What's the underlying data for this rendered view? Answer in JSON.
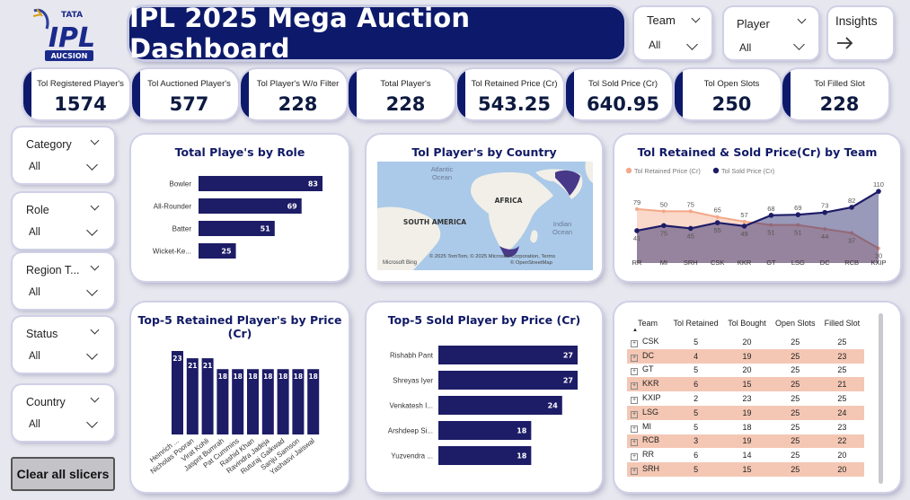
{
  "header": {
    "title": "IPL 2025 Mega Auction Dashboard",
    "logo_top": "TATA",
    "logo_main": "IPL",
    "logo_bottom": "AUCSION",
    "insights_label": "Insights",
    "insights_icon": "arrow-right-icon"
  },
  "top_slicers": [
    {
      "label": "Team",
      "value": "All"
    },
    {
      "label": "Player",
      "value": "All"
    }
  ],
  "kpis": [
    {
      "label": "Tol Registered Player's",
      "value": "1574"
    },
    {
      "label": "Tol Auctioned Player's",
      "value": "577"
    },
    {
      "label": "Tol Player's W/o Filter",
      "value": "228"
    },
    {
      "label": "Total Player's",
      "value": "228"
    },
    {
      "label": "Tol Retained Price (Cr)",
      "value": "543.25"
    },
    {
      "label": "Tol Sold Price (Cr)",
      "value": "640.95"
    },
    {
      "label": "Tol Open Slots",
      "value": "250"
    },
    {
      "label": "Tol Filled Slot",
      "value": "228"
    }
  ],
  "left_slicers": [
    {
      "label": "Category",
      "value": "All"
    },
    {
      "label": "Role",
      "value": "All"
    },
    {
      "label": "Region T...",
      "value": "All"
    },
    {
      "label": "Status",
      "value": "All"
    },
    {
      "label": "Country",
      "value": "All"
    }
  ],
  "clear_button": "Clear all slicers",
  "map": {
    "title": "Tol Player's by Country",
    "labels": {
      "ocean_atlantic": "Atlantic\nOcean",
      "africa": "AFRICA",
      "south_america": "SOUTH AMERICA",
      "ocean_indian": "Indian\nOcean"
    },
    "attribution": "© 2025 TomTom, © 2025 Microsoft Corporation, Terms",
    "osm": "© OpenStreetMap",
    "brand": "Microsoft Bing",
    "colors": {
      "water": "#abc9e8",
      "land": "#f1efe8",
      "highlight": "#473889"
    }
  },
  "chart_data": [
    {
      "type": "bar",
      "orientation": "horizontal",
      "title": "Total Playe's by Role",
      "categories": [
        "Bowler",
        "All-Rounder",
        "Batter",
        "Wicket-Ke..."
      ],
      "values": [
        83,
        69,
        51,
        25
      ],
      "color": "#1d1c67"
    },
    {
      "type": "line",
      "title": "Tol Retained & Sold Price(Cr) by Team",
      "categories": [
        "RR",
        "MI",
        "SRH",
        "CSK",
        "KKR",
        "GT",
        "LSG",
        "DC",
        "RCB",
        "KXIP"
      ],
      "series": [
        {
          "name": "Tol Retained Price (Cr)",
          "color": "#f3a889",
          "values": [
            79,
            75,
            75,
            65,
            57,
            51,
            51,
            44,
            37,
            10
          ]
        },
        {
          "name": "Tol Sold Price (Cr)",
          "color": "#1d1c67",
          "values": [
            41,
            50,
            45,
            55,
            49,
            68,
            69,
            73,
            82,
            110
          ]
        }
      ],
      "data_labels": [
        {
          "category": "RR",
          "texts": [
            "79",
            "41"
          ]
        },
        {
          "category": "MI",
          "texts": [
            "50",
            "75"
          ]
        },
        {
          "category": "SRH",
          "texts": [
            "75",
            "45"
          ]
        },
        {
          "category": "CSK",
          "texts": [
            "65",
            "55"
          ]
        },
        {
          "category": "KKR",
          "texts": [
            "57",
            "49"
          ]
        },
        {
          "category": "GT",
          "texts": [
            "68",
            "51"
          ]
        },
        {
          "category": "LSG",
          "texts": [
            "69",
            "51"
          ]
        },
        {
          "category": "DC",
          "texts": [
            "73",
            "44"
          ]
        },
        {
          "category": "RCB",
          "texts": [
            "82",
            "37"
          ]
        },
        {
          "category": "KXIP",
          "texts": [
            "110",
            "10"
          ]
        }
      ],
      "legend_position": "top-left"
    },
    {
      "type": "bar",
      "orientation": "vertical",
      "title": "Top-5 Retained Player's by Price (Cr)",
      "categories": [
        "Heinrich ...",
        "Nicholas Pooran",
        "Virat Kohli",
        "Jasprit Bumrah",
        "Pat Cummins",
        "Rashid Khan",
        "Ravindra Jadeja",
        "Ruturaj Gaikwad",
        "Sanju Samson",
        "Yashasvi Jaiswal"
      ],
      "values": [
        23,
        21,
        21,
        18,
        18,
        18,
        18,
        18,
        18,
        18
      ],
      "color": "#1d1c67"
    },
    {
      "type": "bar",
      "orientation": "horizontal",
      "title": "Top-5 Sold Player by Price (Cr)",
      "categories": [
        "Rishabh Pant",
        "Shreyas Iyer",
        "Venkatesh I...",
        "Arshdeep Si...",
        "Yuzvendra ..."
      ],
      "values": [
        27,
        27,
        24,
        18,
        18
      ],
      "color": "#1d1c67"
    },
    {
      "type": "table",
      "columns": [
        "Team",
        "Tol Retained",
        "Tol Bought",
        "Open Slots",
        "Filled Slot"
      ],
      "rows": [
        [
          "CSK",
          "5",
          "20",
          "25",
          "25"
        ],
        [
          "DC",
          "4",
          "19",
          "25",
          "23"
        ],
        [
          "GT",
          "5",
          "20",
          "25",
          "25"
        ],
        [
          "KKR",
          "6",
          "15",
          "25",
          "21"
        ],
        [
          "KXIP",
          "2",
          "23",
          "25",
          "25"
        ],
        [
          "LSG",
          "5",
          "19",
          "25",
          "24"
        ],
        [
          "MI",
          "5",
          "18",
          "25",
          "23"
        ],
        [
          "RCB",
          "3",
          "19",
          "25",
          "22"
        ],
        [
          "RR",
          "6",
          "14",
          "25",
          "20"
        ],
        [
          "SRH",
          "5",
          "15",
          "25",
          "20"
        ]
      ],
      "shaded_color": "#f4c7b4"
    }
  ]
}
